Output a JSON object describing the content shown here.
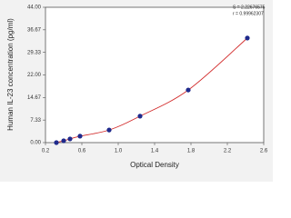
{
  "chart_data": {
    "type": "scatter",
    "x_label": "Optical Density",
    "y_label": "Human IL-23 concentration (pg/ml)",
    "annotations": [
      "S = 2.22676575",
      "r = 0.99962307"
    ],
    "series": [
      {
        "color": "#1f2a8c",
        "x": [
          0.32,
          0.4,
          0.47,
          0.58,
          0.9,
          1.24,
          1.77,
          2.42
        ],
        "values": [
          0,
          0.6,
          1.2,
          2.1,
          4.1,
          8.6,
          17.1,
          34.0
        ]
      }
    ],
    "curve_color": "#d22b2b",
    "xlim": [
      0.2,
      2.6
    ],
    "xticks": [
      0.2,
      0.6,
      {
        "value": 1,
        "label": "1.0"
      },
      1.4,
      1.8,
      2.2,
      2.6
    ],
    "ylim": [
      0,
      44
    ],
    "yticks": [
      {
        "value": 0,
        "label": "0.00"
      },
      7.33,
      14.67,
      {
        "value": 22,
        "label": "22.00"
      },
      29.33,
      36.67,
      {
        "value": 44,
        "label": "44.00"
      }
    ],
    "grid": false
  }
}
